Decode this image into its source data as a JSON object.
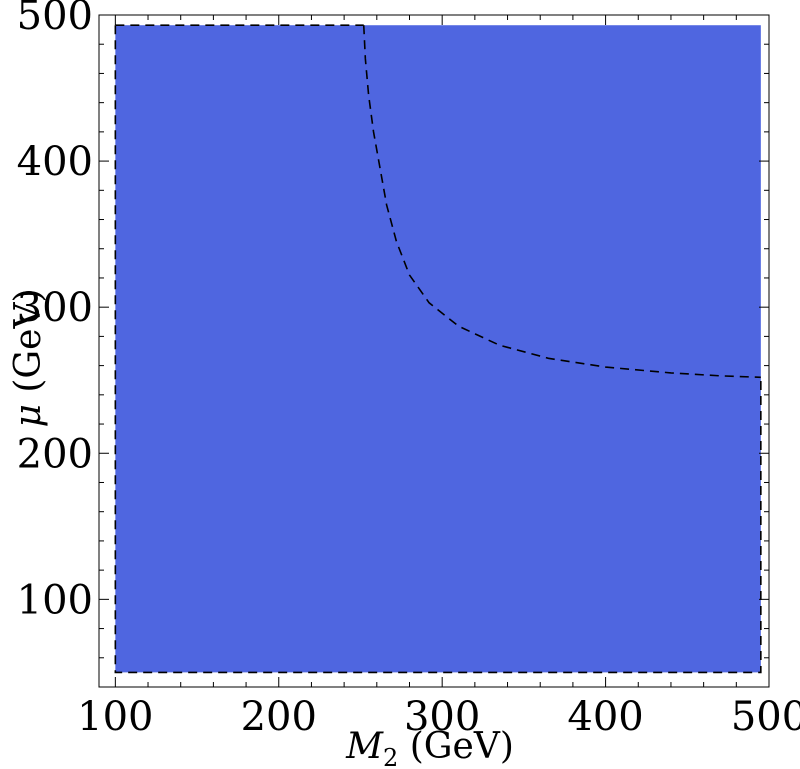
{
  "chart_data": {
    "type": "area",
    "xlabel_symbol": "M",
    "xlabel_sub": "2",
    "xlabel_unit": " (GeV)",
    "ylabel_symbol": "μ",
    "ylabel_unit": " (GeV)",
    "xlim": [
      90,
      500
    ],
    "ylim": [
      40,
      500
    ],
    "xticks": [
      100,
      200,
      300,
      400,
      500
    ],
    "yticks": [
      100,
      200,
      300,
      400,
      500
    ],
    "x_minor_step": 20,
    "y_minor_step": 20,
    "region": {
      "color": "#4f66e0",
      "x_range": [
        100,
        495
      ],
      "y_range": [
        50,
        493
      ]
    },
    "dashed_contour": [
      [
        252,
        493
      ],
      [
        253,
        470
      ],
      [
        255,
        445
      ],
      [
        258,
        420
      ],
      [
        262,
        395
      ],
      [
        266,
        370
      ],
      [
        272,
        345
      ],
      [
        280,
        322
      ],
      [
        292,
        303
      ],
      [
        310,
        287
      ],
      [
        335,
        274
      ],
      [
        365,
        265
      ],
      [
        400,
        259
      ],
      [
        440,
        255
      ],
      [
        470,
        253
      ],
      [
        495,
        252
      ]
    ],
    "dashed_boundary": [
      [
        100,
        493
      ],
      [
        100,
        50
      ],
      [
        495,
        50
      ],
      [
        495,
        252
      ]
    ],
    "dashed_top": [
      [
        100,
        493
      ],
      [
        252,
        493
      ]
    ],
    "grid": false,
    "legend": "none"
  }
}
